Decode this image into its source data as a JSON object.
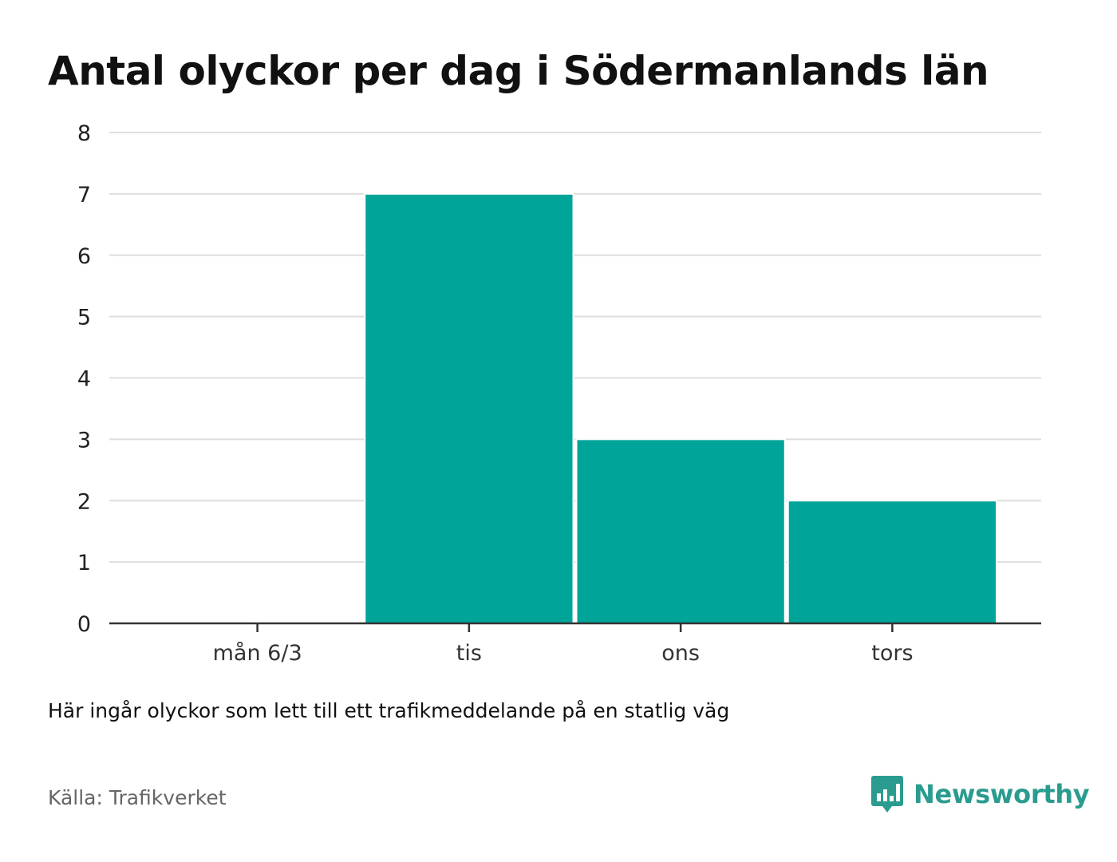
{
  "chart_data": {
    "type": "bar",
    "title": "Antal olyckor per dag i Södermanlands län",
    "categories": [
      "mån 6/3",
      "tis",
      "ons",
      "tors"
    ],
    "values": [
      0,
      7,
      3,
      2
    ],
    "ylim": [
      0,
      8
    ],
    "yticks": [
      0,
      1,
      2,
      3,
      4,
      5,
      6,
      7,
      8
    ],
    "xlabel": "",
    "ylabel": "",
    "grid": true,
    "bar_color": "#00a499"
  },
  "note": "Här ingår olyckor som lett till ett trafikmeddelande på en statlig väg",
  "source": "Källa: Trafikverket",
  "brand": {
    "name": "Newsworthy",
    "icon": "newsworthy-logo-icon",
    "color": "#2a9c8f"
  }
}
